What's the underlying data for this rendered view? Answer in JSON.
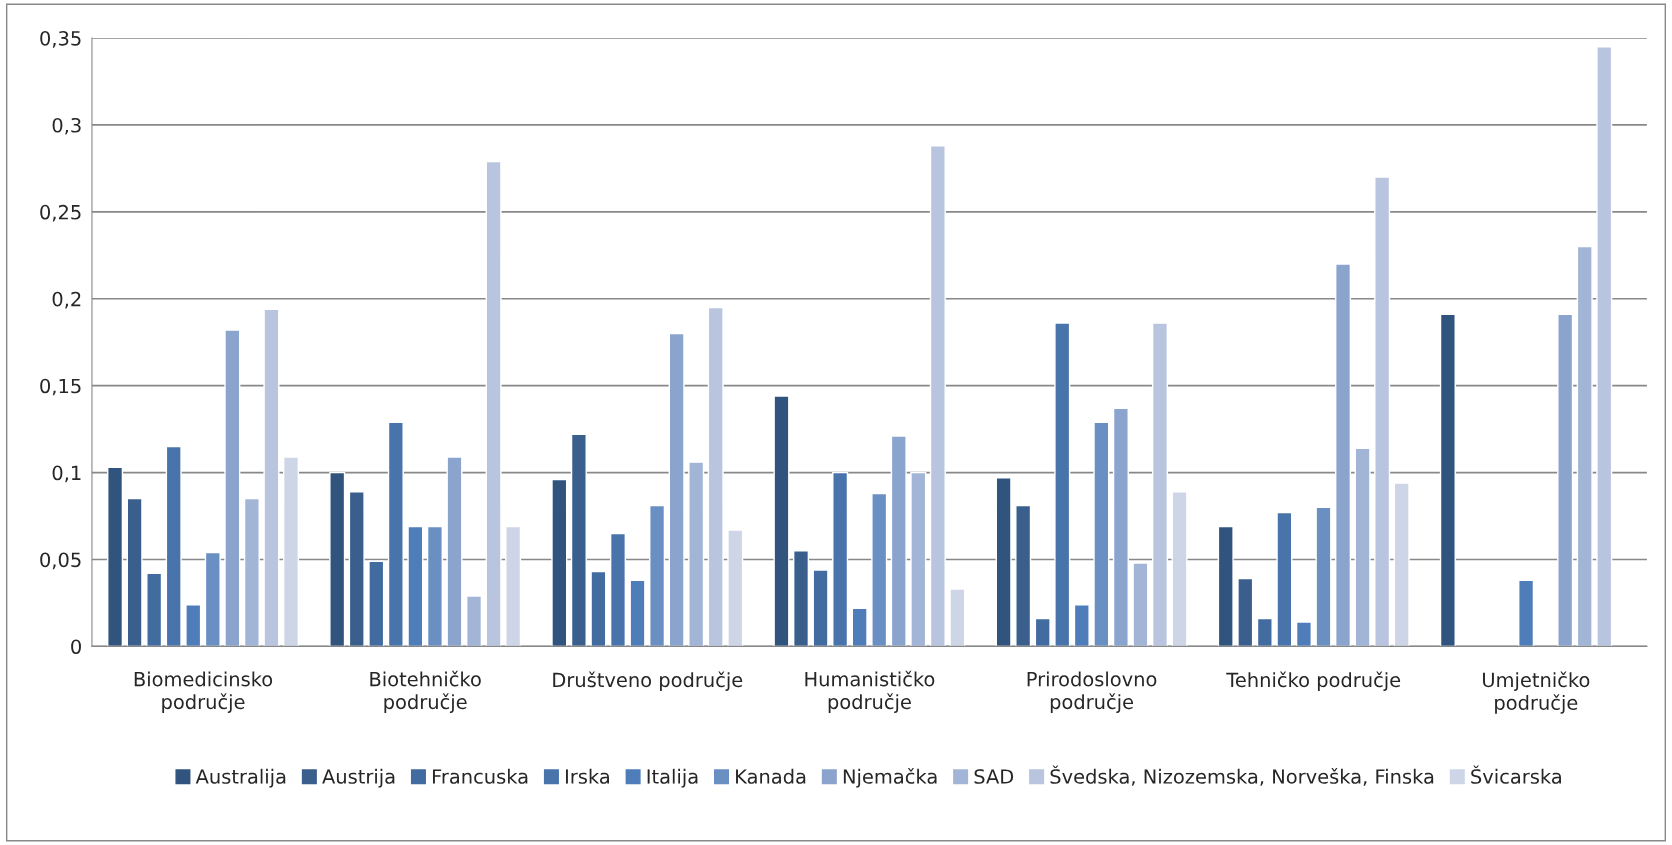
{
  "chart_data": {
    "type": "bar",
    "categories": [
      "Biomedicinsko\npodručje",
      "Biotehničko\npodručje",
      "Društveno područje",
      "Humanističko\npodručje",
      "Prirodoslovno\npodručje",
      "Tehničko područje",
      "Umjetničko\npodručje"
    ],
    "series": [
      {
        "name": "Australija",
        "color": "#31547f",
        "values": [
          0.103,
          0.1,
          0.096,
          0.144,
          0.097,
          0.069,
          0.191
        ]
      },
      {
        "name": "Austrija",
        "color": "#3a5f8d",
        "values": [
          0.085,
          0.089,
          0.122,
          0.055,
          0.081,
          0.039,
          null
        ]
      },
      {
        "name": "Francuska",
        "color": "#426b9f",
        "values": [
          0.042,
          0.049,
          0.043,
          0.044,
          0.016,
          0.016,
          null
        ]
      },
      {
        "name": "Irska",
        "color": "#4874ab",
        "values": [
          0.115,
          0.129,
          0.065,
          0.1,
          0.186,
          0.077,
          null
        ]
      },
      {
        "name": "Italija",
        "color": "#4f7db9",
        "values": [
          0.024,
          0.069,
          0.038,
          0.022,
          0.024,
          0.014,
          0.038
        ]
      },
      {
        "name": "Kanada",
        "color": "#6a8fc3",
        "values": [
          0.054,
          0.069,
          0.081,
          0.088,
          0.129,
          0.08,
          null
        ]
      },
      {
        "name": "Njemačka",
        "color": "#8ba4cd",
        "values": [
          0.182,
          0.109,
          0.18,
          0.121,
          0.137,
          0.22,
          0.191
        ]
      },
      {
        "name": "SAD",
        "color": "#a3b5d6",
        "values": [
          0.085,
          0.029,
          0.106,
          0.1,
          0.048,
          0.114,
          0.23
        ]
      },
      {
        "name": "Švedska, Nizozemska, Norveška, Finska",
        "color": "#b9c5df",
        "values": [
          0.194,
          0.279,
          0.195,
          0.288,
          0.186,
          0.27,
          0.345
        ]
      },
      {
        "name": "Švicarska",
        "color": "#cdd5e6",
        "values": [
          0.109,
          0.069,
          0.067,
          0.033,
          0.089,
          0.094,
          null
        ]
      }
    ],
    "ylim": [
      0,
      0.35
    ],
    "yticks": [
      0,
      {
        "value": 0.05,
        "label": "0,05"
      },
      {
        "value": 0.1,
        "label": "0,1"
      },
      {
        "value": 0.15,
        "label": "0,15"
      },
      {
        "value": 0.2,
        "label": "0,2"
      },
      {
        "value": 0.25,
        "label": "0,25"
      },
      {
        "value": 0.3,
        "label": "0,3"
      },
      {
        "value": 0.35,
        "label": "0,35"
      }
    ],
    "grid": "y",
    "legend": "bottom"
  }
}
